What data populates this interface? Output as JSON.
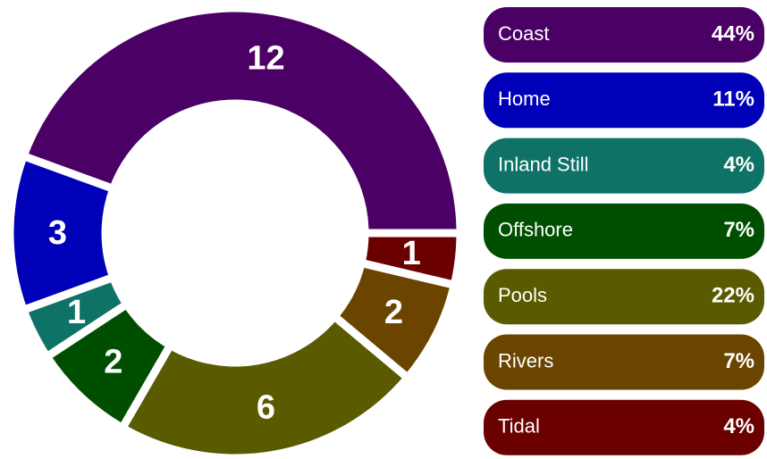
{
  "chart_data": {
    "type": "donut",
    "categories": [
      "Coast",
      "Home",
      "Inland Still",
      "Offshore",
      "Pools",
      "Rivers",
      "Tidal"
    ],
    "values": [
      12,
      3,
      1,
      2,
      6,
      2,
      1
    ],
    "percent_labels": [
      "44%",
      "11%",
      "4%",
      "7%",
      "22%",
      "7%",
      "4%"
    ],
    "colors": [
      "#4b0066",
      "#0000b8",
      "#0e7366",
      "#004f00",
      "#5a5a00",
      "#6b4500",
      "#6b0000"
    ]
  }
}
